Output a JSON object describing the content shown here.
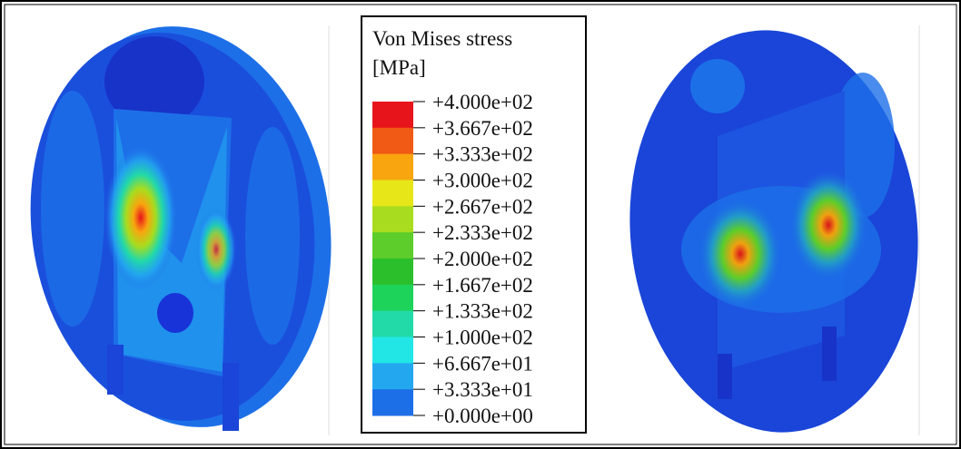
{
  "legend": {
    "title": [
      "Von Mises stress",
      "[MPa]"
    ],
    "labels": [
      "+4.000e+02",
      "+3.667e+02",
      "+3.333e+02",
      "+3.000e+02",
      "+2.667e+02",
      "+2.333e+02",
      "+2.000e+02",
      "+1.667e+02",
      "+1.333e+02",
      "+1.000e+02",
      "+6.667e+01",
      "+3.333e+01",
      "+0.000e+00"
    ],
    "colors": [
      "#e8141b",
      "#f05a14",
      "#f8a50f",
      "#e6e619",
      "#a8dc1e",
      "#5ccd2a",
      "#2cbf2c",
      "#1ed35a",
      "#22d9a8",
      "#22e6e6",
      "#23a8f0",
      "#1d6fe8",
      "#1833d8"
    ]
  }
}
